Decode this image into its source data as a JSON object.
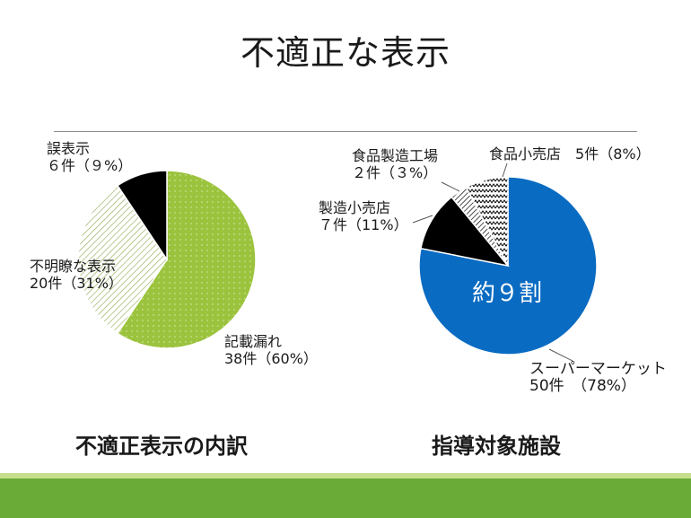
{
  "slide": {
    "title": "不適正な表示",
    "caption_left": "不適正表示の内訳",
    "caption_right": "指導対象施設"
  },
  "colors": {
    "green_slice": "#9bc33d",
    "blue_slice": "#0a6bc2",
    "black_slice": "#000000",
    "footer_light": "#c5de8c",
    "footer_dark": "#6aaa37"
  },
  "chart_data": [
    {
      "type": "pie",
      "title": "不適正表示の内訳",
      "slices": [
        {
          "label": "記載漏れ",
          "count_text": "38件（60%）",
          "value": 38,
          "percent": 60,
          "color": "#9bc33d",
          "pattern": "dots"
        },
        {
          "label": "不明瞭な表示",
          "count_text": "20件（31%）",
          "value": 20,
          "percent": 31,
          "color": "#ffffff",
          "pattern": "diagonal-lines"
        },
        {
          "label": "誤表示",
          "count_text": "６件（９%）",
          "value": 6,
          "percent": 9,
          "color": "#000000",
          "pattern": "solid"
        }
      ]
    },
    {
      "type": "pie",
      "title": "指導対象施設",
      "center_annotation": "約９割",
      "slices": [
        {
          "label": "スーパーマーケット",
          "count_text": "50件　（78%）",
          "value": 50,
          "percent": 78,
          "color": "#0a6bc2",
          "pattern": "solid"
        },
        {
          "label": "製造小売店",
          "count_text": "７件（11%）",
          "value": 7,
          "percent": 11,
          "color": "#000000",
          "pattern": "solid"
        },
        {
          "label": "食品製造工場",
          "count_text": "２件（３%）",
          "value": 2,
          "percent": 3,
          "color": "#ffffff",
          "pattern": "hatch"
        },
        {
          "label": "食品小売店",
          "count_text": "5件（8%）",
          "value": 5,
          "percent": 8,
          "color": "#ffffff",
          "pattern": "zigzag"
        }
      ]
    }
  ]
}
